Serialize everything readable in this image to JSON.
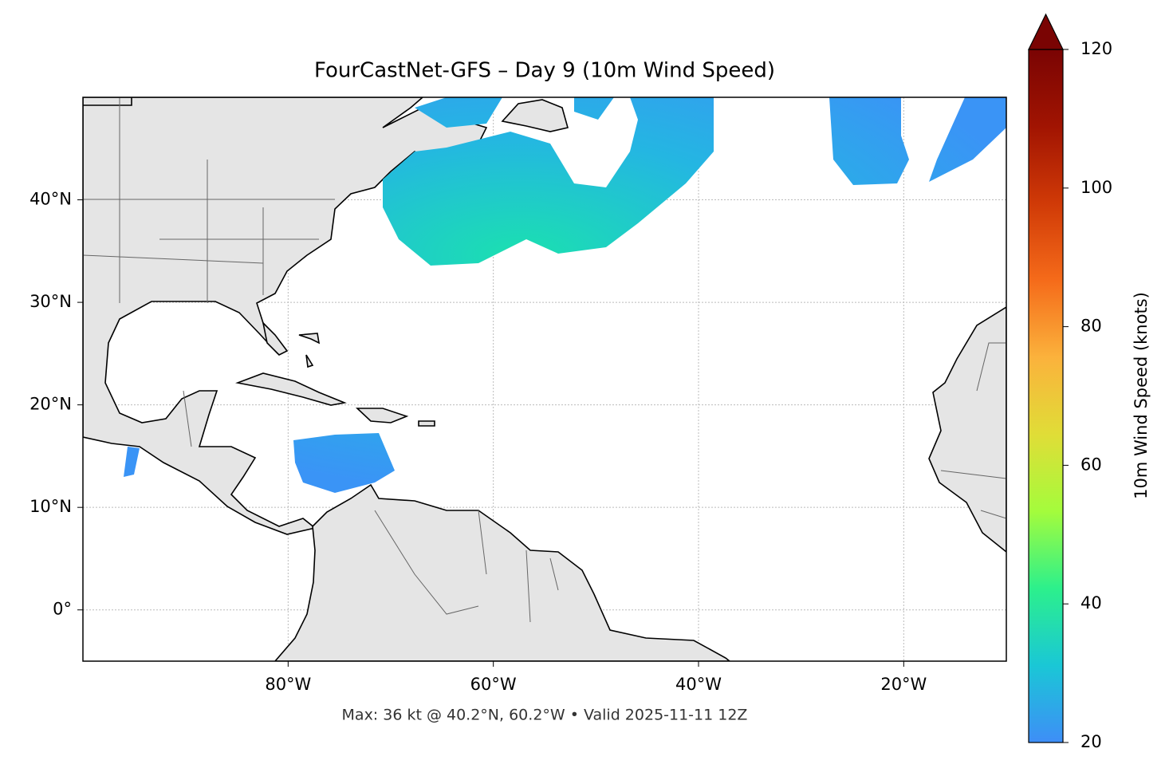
{
  "chart_data": {
    "type": "map",
    "title": "FourCastNet-GFS – Day 9 (10m Wind Speed)",
    "note": "Max: 36 kt @ 40.2°N, 60.2°W • Valid 2025-11-11 12Z",
    "xlim": [
      -100,
      -10
    ],
    "ylim": [
      -5,
      50
    ],
    "xticks": [
      {
        "value": -80,
        "label": "80°W"
      },
      {
        "value": -60,
        "label": "60°W"
      },
      {
        "value": -40,
        "label": "40°W"
      },
      {
        "value": -20,
        "label": "20°W"
      }
    ],
    "yticks": [
      {
        "value": 0,
        "label": "0°"
      },
      {
        "value": 10,
        "label": "10°N"
      },
      {
        "value": 20,
        "label": "20°N"
      },
      {
        "value": 30,
        "label": "30°N"
      },
      {
        "value": 40,
        "label": "40°N"
      }
    ],
    "grid": true,
    "colorbar": {
      "label": "10m Wind Speed (knots)",
      "lim": [
        20,
        120
      ],
      "ticks": [
        20,
        40,
        60,
        80,
        100,
        120
      ],
      "colors": [
        "#3e8ef7",
        "#1ac7d6",
        "#2cf08c",
        "#a4fc3c",
        "#e0dd37",
        "#fbb23c",
        "#f56b1a",
        "#d03a07",
        "#a11402",
        "#7a0403"
      ]
    }
  }
}
